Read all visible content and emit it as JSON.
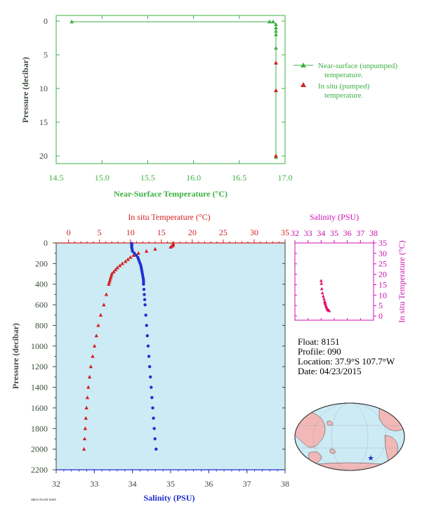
{
  "colors": {
    "green": "#3cb043",
    "red": "#d42020",
    "blue": "#1f2fd0",
    "magenta": "#cc10b0",
    "pink": "#e0106a",
    "plot_bg": "#cdebf5",
    "axis_dark": "#3a4a3a"
  },
  "float_info": {
    "float_line": "Float:  8151",
    "profile_line": "Profile:  090",
    "location_line": "Location:  37.9°S  107.7°W",
    "date_line": "Date:  04/23/2015",
    "footer_tag": "ARGO FLOAT DATA"
  },
  "chart_data": [
    {
      "id": "near_surface",
      "type": "line",
      "xlabel": "Near-Surface Temperature (°C)",
      "ylabel": "Pressure (decibar)",
      "xlim": [
        14.5,
        17.0
      ],
      "ylim": [
        0,
        22
      ],
      "y_inverted": true,
      "x_ticks": [
        "14.5",
        "15.0",
        "15.5",
        "16.0",
        "16.5",
        "17.0"
      ],
      "y_ticks": [
        "0",
        "5",
        "10",
        "15",
        "20"
      ],
      "legend_position": "right",
      "legend_entries": [
        {
          "series": "near_surface_unpumped",
          "line1": "Near-surface (unpumped)",
          "line2": "temperature."
        },
        {
          "series": "in_situ_pumped",
          "line1": "In situ (pumped)",
          "line2": "temperature."
        }
      ],
      "series": [
        {
          "key": "near_surface_unpumped",
          "color": "green",
          "marker": "triangle",
          "points": [
            [
              14.67,
              0.1
            ],
            [
              16.83,
              0.1
            ],
            [
              16.87,
              0.1
            ],
            [
              16.9,
              0.5
            ],
            [
              16.9,
              1.0
            ],
            [
              16.9,
              1.5
            ],
            [
              16.9,
              2.0
            ],
            [
              16.9,
              4.0
            ],
            [
              16.9,
              6.2
            ],
            [
              16.9,
              10.3
            ],
            [
              16.9,
              20.2
            ]
          ]
        },
        {
          "key": "in_situ_pumped",
          "color": "red",
          "marker": "triangle",
          "points": [
            [
              16.9,
              6.2
            ],
            [
              16.9,
              10.3
            ],
            [
              16.9,
              20.0
            ]
          ]
        }
      ]
    },
    {
      "id": "profile",
      "type": "scatter",
      "top_axis_label": "In situ Temperature (°C)",
      "bottom_axis_label": "Salinity (PSU)",
      "ylabel": "Pressure (decibar)",
      "temp_lim": [
        -2,
        35
      ],
      "sal_lim": [
        32,
        38
      ],
      "ylim": [
        0,
        2200
      ],
      "y_inverted": true,
      "temp_ticks": [
        "0",
        "5",
        "10",
        "15",
        "20",
        "25",
        "30",
        "35"
      ],
      "sal_ticks": [
        "32",
        "33",
        "34",
        "35",
        "36",
        "37",
        "38"
      ],
      "y_ticks": [
        "0",
        "200",
        "400",
        "600",
        "800",
        "1000",
        "1200",
        "1400",
        "1600",
        "1800",
        "2000",
        "2200"
      ],
      "temperature": {
        "color": "red",
        "marker": "triangle",
        "pressure": [
          5,
          10,
          20,
          30,
          40,
          60,
          80,
          100,
          120,
          140,
          160,
          180,
          200,
          220,
          240,
          260,
          280,
          300,
          320,
          340,
          360,
          380,
          400,
          500,
          600,
          700,
          800,
          900,
          1000,
          1100,
          1200,
          1300,
          1400,
          1500,
          1600,
          1700,
          1800,
          1900,
          2000
        ],
        "values": [
          16.9,
          16.9,
          16.9,
          16.8,
          16.5,
          14.0,
          12.6,
          11.3,
          10.5,
          10.0,
          9.6,
          9.2,
          8.7,
          8.3,
          7.9,
          7.6,
          7.3,
          7.0,
          6.9,
          6.8,
          6.7,
          6.6,
          6.5,
          6.1,
          5.7,
          5.2,
          4.8,
          4.5,
          4.2,
          3.9,
          3.6,
          3.4,
          3.2,
          3.05,
          2.9,
          2.8,
          2.7,
          2.6,
          2.5
        ]
      },
      "salinity": {
        "color": "blue",
        "marker": "dot",
        "pressure": [
          5,
          10,
          20,
          30,
          40,
          60,
          80,
          100,
          120,
          140,
          160,
          180,
          200,
          220,
          240,
          260,
          280,
          300,
          320,
          340,
          360,
          380,
          400,
          450,
          500,
          550,
          600,
          700,
          800,
          900,
          1000,
          1100,
          1200,
          1300,
          1400,
          1500,
          1600,
          1700,
          1800,
          1900,
          2000
        ],
        "values": [
          33.98,
          33.98,
          33.98,
          33.98,
          33.98,
          33.99,
          34.0,
          34.05,
          34.1,
          34.14,
          34.16,
          34.18,
          34.2,
          34.22,
          34.23,
          34.24,
          34.25,
          34.26,
          34.27,
          34.28,
          34.29,
          34.29,
          34.29,
          34.3,
          34.31,
          34.32,
          34.33,
          34.35,
          34.37,
          34.39,
          34.41,
          34.43,
          34.45,
          34.47,
          34.49,
          34.51,
          34.53,
          34.55,
          34.57,
          34.59,
          34.62
        ]
      }
    },
    {
      "id": "ts_diagram",
      "type": "scatter",
      "xlabel": "Salinity (PSU)",
      "ylabel": "In situ Temperature (°C)",
      "xlim": [
        32,
        38
      ],
      "ylim": [
        -2,
        35
      ],
      "x_ticks": [
        "32",
        "33",
        "34",
        "35",
        "36",
        "37",
        "38"
      ],
      "y_ticks": [
        "0",
        "5",
        "10",
        "15",
        "20",
        "25",
        "30",
        "35"
      ],
      "color": "pink",
      "points": [
        [
          34.0,
          16.9
        ],
        [
          34.02,
          15.5
        ],
        [
          34.05,
          13.0
        ],
        [
          34.1,
          11.0
        ],
        [
          34.16,
          9.5
        ],
        [
          34.22,
          8.2
        ],
        [
          34.27,
          7.0
        ],
        [
          34.29,
          6.6
        ],
        [
          34.31,
          6.1
        ],
        [
          34.33,
          5.6
        ],
        [
          34.37,
          4.8
        ],
        [
          34.41,
          4.2
        ],
        [
          34.45,
          3.6
        ],
        [
          34.49,
          3.2
        ],
        [
          34.53,
          2.9
        ],
        [
          34.57,
          2.7
        ],
        [
          34.62,
          2.5
        ]
      ]
    },
    {
      "id": "location_map",
      "type": "scatter",
      "marker": {
        "lat": -37.9,
        "lon": -107.7,
        "color": "blue",
        "symbol": "star"
      }
    }
  ]
}
